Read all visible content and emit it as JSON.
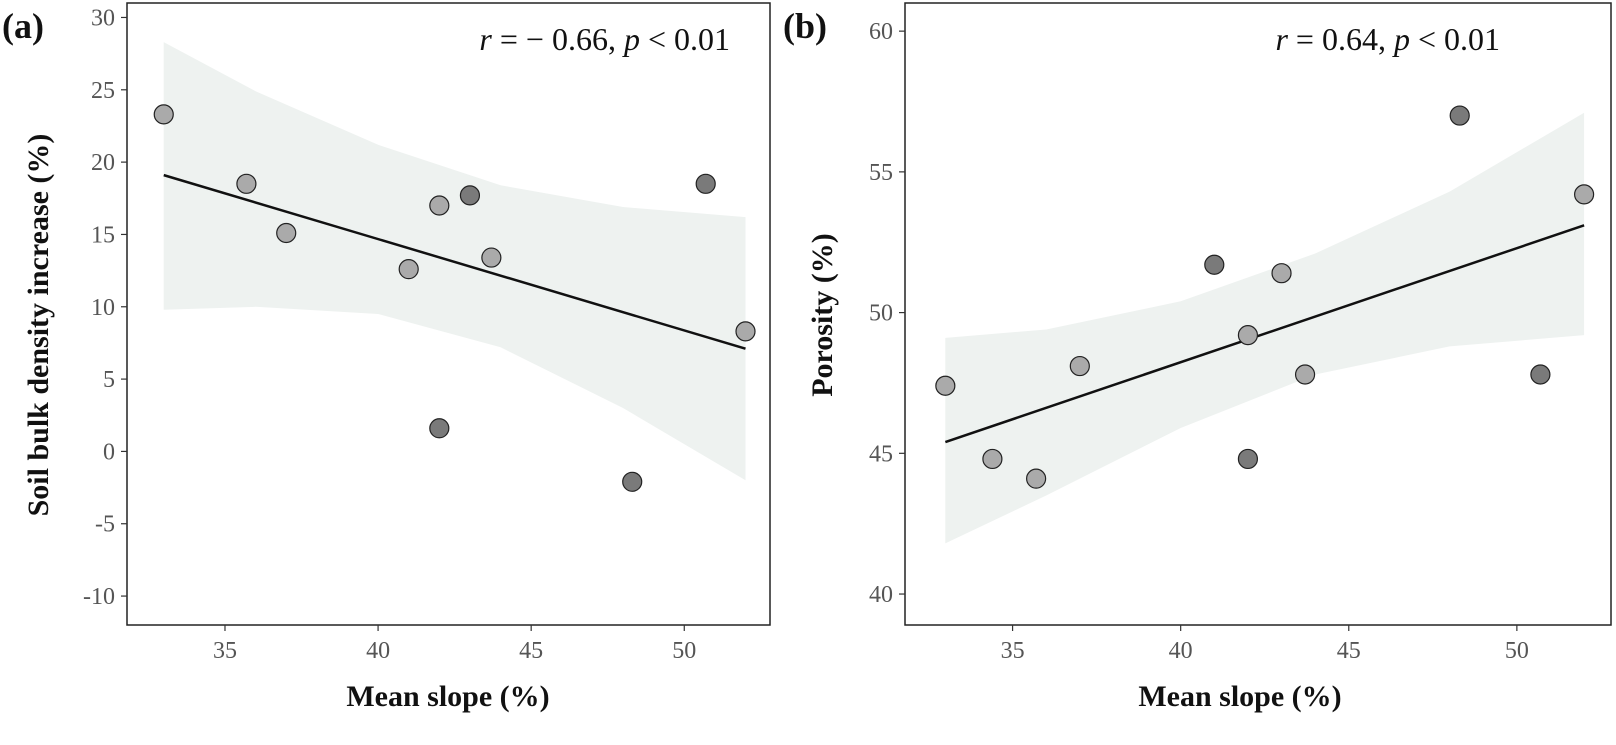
{
  "chart_data": [
    {
      "type": "scatter",
      "panel_label": "(a)",
      "xlabel": "Mean slope (%)",
      "ylabel": "Soil bulk density increase (%)",
      "xlim": [
        31.8,
        52.8
      ],
      "ylim": [
        -12,
        31
      ],
      "xticks": [
        "35",
        "40",
        "45",
        "50"
      ],
      "yticks": [
        "-10",
        "-5",
        "0",
        "5",
        "10",
        "15",
        "20",
        "25",
        "30"
      ],
      "annotation": {
        "r_symbol": "r",
        "r_text": " = − 0.66, ",
        "p_symbol": "p",
        "p_text": " < 0.01"
      },
      "points": [
        {
          "x": 33.0,
          "y": 23.3,
          "group": "light"
        },
        {
          "x": 35.7,
          "y": 18.5,
          "group": "light"
        },
        {
          "x": 37.0,
          "y": 15.1,
          "group": "light"
        },
        {
          "x": 41.0,
          "y": 12.6,
          "group": "light"
        },
        {
          "x": 42.0,
          "y": 17.0,
          "group": "light"
        },
        {
          "x": 42.0,
          "y": 1.6,
          "group": "dark"
        },
        {
          "x": 43.0,
          "y": 17.7,
          "group": "dark"
        },
        {
          "x": 43.7,
          "y": 13.4,
          "group": "light"
        },
        {
          "x": 48.3,
          "y": -2.1,
          "group": "dark"
        },
        {
          "x": 50.7,
          "y": 18.5,
          "group": "dark"
        },
        {
          "x": 52.0,
          "y": 8.3,
          "group": "light"
        }
      ],
      "fit_line": {
        "x": [
          33.0,
          52.0
        ],
        "y": [
          19.1,
          7.1
        ]
      },
      "ci_band": {
        "x": [
          33.0,
          36.0,
          40.0,
          44.0,
          48.0,
          52.0
        ],
        "upper": [
          28.3,
          24.9,
          21.2,
          18.4,
          16.9,
          16.2
        ],
        "lower": [
          9.8,
          10.0,
          9.5,
          7.2,
          3.0,
          -2.0
        ]
      },
      "colors": {
        "light": "#aaaaaa",
        "dark": "#7a7a7a",
        "line": "#111111",
        "band": "#eef2f0"
      }
    },
    {
      "type": "scatter",
      "panel_label": "(b)",
      "xlabel": "Mean slope (%)",
      "ylabel": "Porosity (%)",
      "xlim": [
        31.8,
        52.8
      ],
      "ylim": [
        38.9,
        61.0
      ],
      "xticks": [
        "35",
        "40",
        "45",
        "50"
      ],
      "yticks": [
        "40",
        "45",
        "50",
        "55",
        "60"
      ],
      "annotation": {
        "r_symbol": "r",
        "r_text": " = 0.64, ",
        "p_symbol": "p",
        "p_text": " < 0.01"
      },
      "points": [
        {
          "x": 33.0,
          "y": 47.4,
          "group": "light"
        },
        {
          "x": 34.4,
          "y": 44.8,
          "group": "light"
        },
        {
          "x": 35.7,
          "y": 44.1,
          "group": "light"
        },
        {
          "x": 37.0,
          "y": 48.1,
          "group": "light"
        },
        {
          "x": 41.0,
          "y": 51.7,
          "group": "dark"
        },
        {
          "x": 42.0,
          "y": 49.2,
          "group": "light"
        },
        {
          "x": 42.0,
          "y": 44.8,
          "group": "dark"
        },
        {
          "x": 43.0,
          "y": 51.4,
          "group": "light"
        },
        {
          "x": 43.7,
          "y": 47.8,
          "group": "light"
        },
        {
          "x": 48.3,
          "y": 57.0,
          "group": "dark"
        },
        {
          "x": 50.7,
          "y": 47.8,
          "group": "dark"
        },
        {
          "x": 52.0,
          "y": 54.2,
          "group": "light"
        }
      ],
      "fit_line": {
        "x": [
          33.0,
          52.0
        ],
        "y": [
          45.4,
          53.1
        ]
      },
      "ci_band": {
        "x": [
          33.0,
          36.0,
          40.0,
          44.0,
          48.0,
          52.0
        ],
        "upper": [
          49.1,
          49.4,
          50.4,
          52.1,
          54.3,
          57.1
        ],
        "lower": [
          41.8,
          43.5,
          45.9,
          47.8,
          48.8,
          49.2
        ]
      },
      "colors": {
        "light": "#aaaaaa",
        "dark": "#7a7a7a",
        "line": "#111111",
        "band": "#eef2f0"
      }
    }
  ]
}
